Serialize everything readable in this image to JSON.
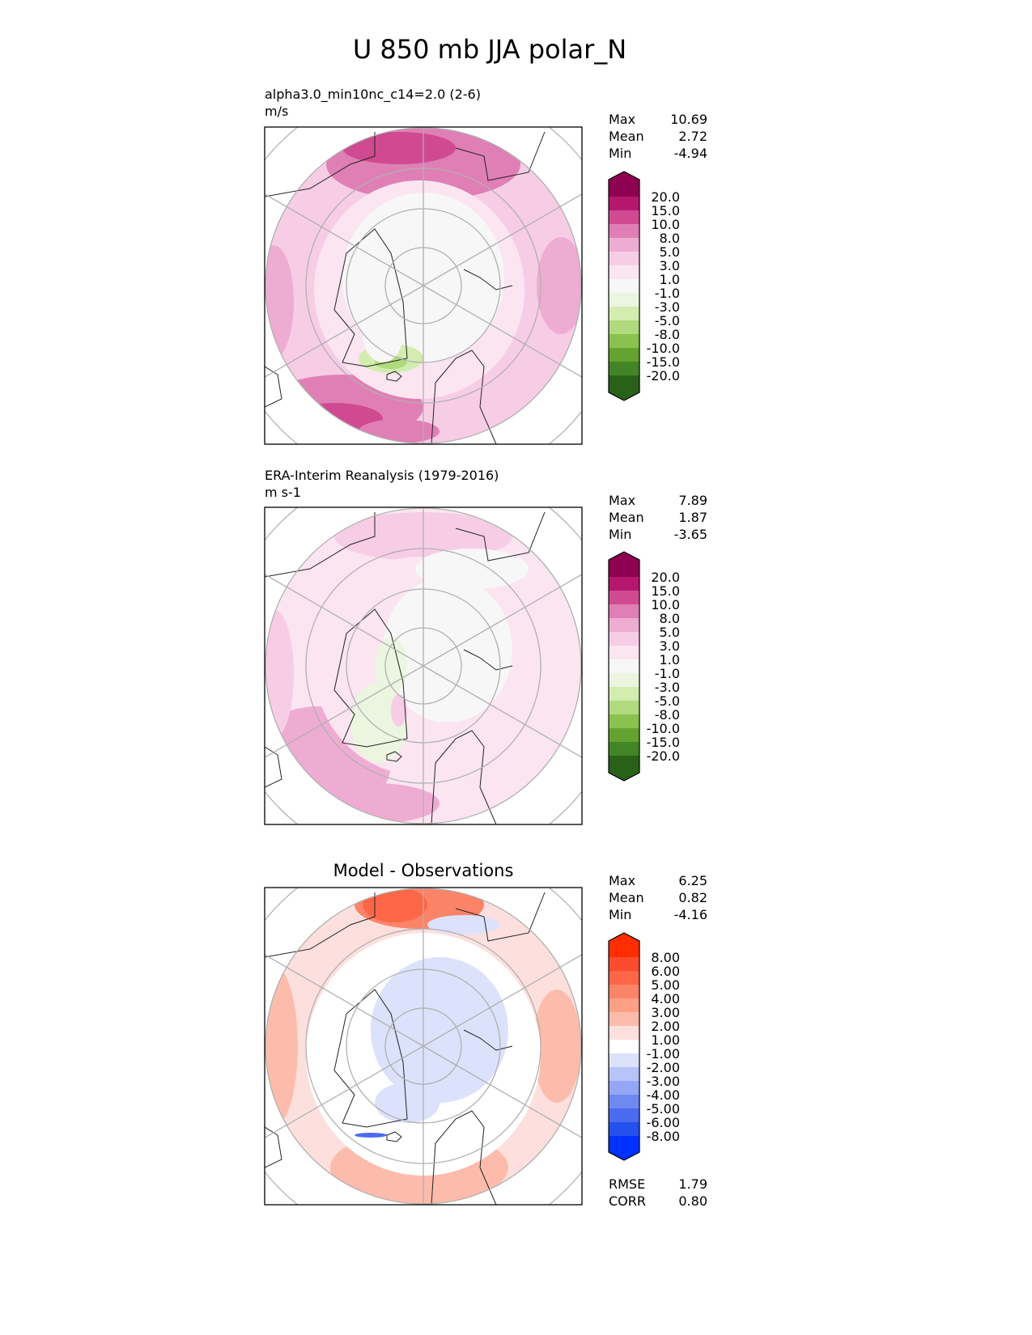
{
  "title": "U 850 mb JJA polar_N",
  "panels": [
    {
      "name": "test",
      "subtitle": "alpha3.0_min10nc_c14=2.0 (2-6)",
      "units": "m/s",
      "stats": {
        "max_label": "Max",
        "max": "10.69",
        "mean_label": "Mean",
        "mean": "2.72",
        "min_label": "Min",
        "min": "-4.94"
      }
    },
    {
      "name": "reference",
      "subtitle": "ERA-Interim Reanalysis (1979-2016)",
      "units": "m s-1",
      "stats": {
        "max_label": "Max",
        "max": "7.89",
        "mean_label": "Mean",
        "mean": "1.87",
        "min_label": "Min",
        "min": "-3.65"
      }
    },
    {
      "name": "difference",
      "title": "Model - Observations",
      "stats": {
        "max_label": "Max",
        "max": "6.25",
        "mean_label": "Mean",
        "mean": "0.82",
        "min_label": "Min",
        "min": "-4.16"
      },
      "metrics": {
        "rmse_label": "RMSE",
        "rmse": "1.79",
        "corr_label": "CORR",
        "corr": "0.80"
      }
    }
  ],
  "colorbar_main": {
    "levels": [
      "20.0",
      "15.0",
      "10.0",
      "8.0",
      "5.0",
      "3.0",
      "1.0",
      "-1.0",
      "-3.0",
      "-5.0",
      "-8.0",
      "-10.0",
      "-15.0",
      "-20.0"
    ],
    "colors": [
      "#8e0152",
      "#b5176f",
      "#d04a91",
      "#e07fb5",
      "#efacd3",
      "#f7cde6",
      "#fbe5f0",
      "#f7f7f7",
      "#ebf5e0",
      "#d3ecb0",
      "#b0da7d",
      "#8bc14f",
      "#64a32f",
      "#438526",
      "#2a6118"
    ]
  },
  "colorbar_diff": {
    "levels": [
      "8.00",
      "6.00",
      "5.00",
      "4.00",
      "3.00",
      "2.00",
      "1.00",
      "-1.00",
      "-2.00",
      "-3.00",
      "-4.00",
      "-5.00",
      "-6.00",
      "-8.00"
    ],
    "colors": [
      "#ff2d00",
      "#fb4b2e",
      "#fd6647",
      "#fb8468",
      "#fca186",
      "#fdbcab",
      "#fde0dd",
      "#ffffff",
      "#dce2fb",
      "#b7c4f9",
      "#93a7f6",
      "#6f89f3",
      "#4a6bf0",
      "#2450ee",
      "#0032ff"
    ]
  }
}
